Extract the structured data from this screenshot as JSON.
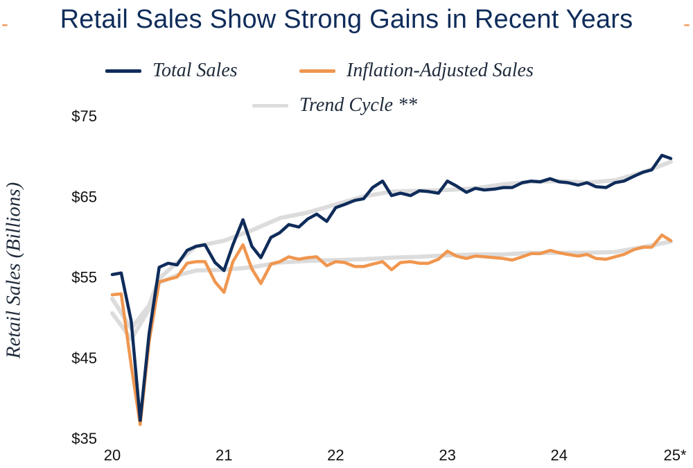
{
  "chart_data": {
    "type": "line",
    "title": "Retail Sales Show Strong Gains in Recent Years",
    "ylabel": "Retail Sales (Billions)",
    "xlabel": "",
    "ylim": [
      35,
      75
    ],
    "xlim": [
      2020,
      2025
    ],
    "y_ticks": [
      {
        "value": 75,
        "label": "$75"
      },
      {
        "value": 65,
        "label": "$65"
      },
      {
        "value": 55,
        "label": "$55"
      },
      {
        "value": 45,
        "label": "$45"
      },
      {
        "value": 35,
        "label": "$35"
      }
    ],
    "x_ticks": [
      {
        "value": 2020,
        "label": "20"
      },
      {
        "value": 2021,
        "label": "21"
      },
      {
        "value": 2022,
        "label": "22"
      },
      {
        "value": 2023,
        "label": "23"
      },
      {
        "value": 2024,
        "label": "24"
      },
      {
        "value": 2025,
        "label": "25*"
      }
    ],
    "grid": false,
    "legend_position": "top-center",
    "series": [
      {
        "name": "Trend Cycle **",
        "color": "#dcdcdc",
        "role": "trend",
        "values": [
          [
            2020.0,
            50.5
          ],
          [
            2020.17,
            47.3
          ],
          [
            2020.33,
            51.0
          ],
          [
            2020.42,
            54.3
          ],
          [
            2020.58,
            55.2
          ],
          [
            2020.75,
            55.8
          ],
          [
            2021.0,
            55.9
          ],
          [
            2021.25,
            56.2
          ],
          [
            2021.5,
            56.8
          ],
          [
            2021.75,
            57.0
          ],
          [
            2022.0,
            57.1
          ],
          [
            2022.25,
            57.2
          ],
          [
            2022.5,
            57.4
          ],
          [
            2022.75,
            57.5
          ],
          [
            2023.0,
            57.7
          ],
          [
            2023.25,
            57.8
          ],
          [
            2023.5,
            57.8
          ],
          [
            2023.75,
            58.0
          ],
          [
            2024.0,
            58.0
          ],
          [
            2024.25,
            58.0
          ],
          [
            2024.5,
            58.1
          ],
          [
            2024.75,
            58.7
          ],
          [
            2025.0,
            59.4
          ]
        ]
      },
      {
        "name": "Trend Cycle **",
        "color": "#dcdcdc",
        "role": "trend",
        "values": [
          [
            2020.0,
            52.3
          ],
          [
            2020.17,
            48.6
          ],
          [
            2020.33,
            51.5
          ],
          [
            2020.42,
            54.8
          ],
          [
            2020.58,
            56.8
          ],
          [
            2020.75,
            58.8
          ],
          [
            2021.0,
            59.5
          ],
          [
            2021.25,
            60.8
          ],
          [
            2021.5,
            62.3
          ],
          [
            2021.75,
            63.0
          ],
          [
            2022.0,
            64.0
          ],
          [
            2022.25,
            65.0
          ],
          [
            2022.5,
            65.6
          ],
          [
            2022.75,
            65.7
          ],
          [
            2023.0,
            65.8
          ],
          [
            2023.25,
            66.0
          ],
          [
            2023.5,
            66.5
          ],
          [
            2023.75,
            66.8
          ],
          [
            2024.0,
            66.9
          ],
          [
            2024.25,
            66.7
          ],
          [
            2024.5,
            67.0
          ],
          [
            2024.75,
            68.0
          ],
          [
            2025.0,
            69.3
          ]
        ]
      },
      {
        "name": "Inflation-Adjusted Sales",
        "color": "#f0964f",
        "values": [
          [
            2020.0,
            52.8
          ],
          [
            2020.08,
            52.9
          ],
          [
            2020.17,
            44.0
          ],
          [
            2020.25,
            36.7
          ],
          [
            2020.33,
            47.0
          ],
          [
            2020.42,
            54.4
          ],
          [
            2020.5,
            54.7
          ],
          [
            2020.58,
            55.0
          ],
          [
            2020.67,
            56.7
          ],
          [
            2020.75,
            56.9
          ],
          [
            2020.83,
            56.9
          ],
          [
            2020.92,
            54.4
          ],
          [
            2021.0,
            53.1
          ],
          [
            2021.08,
            56.9
          ],
          [
            2021.17,
            59.0
          ],
          [
            2021.25,
            56.0
          ],
          [
            2021.33,
            54.2
          ],
          [
            2021.42,
            56.6
          ],
          [
            2021.5,
            56.9
          ],
          [
            2021.58,
            57.5
          ],
          [
            2021.67,
            57.2
          ],
          [
            2021.75,
            57.4
          ],
          [
            2021.83,
            57.5
          ],
          [
            2021.92,
            56.4
          ],
          [
            2022.0,
            56.9
          ],
          [
            2022.08,
            56.8
          ],
          [
            2022.17,
            56.3
          ],
          [
            2022.25,
            56.3
          ],
          [
            2022.33,
            56.6
          ],
          [
            2022.42,
            56.9
          ],
          [
            2022.5,
            55.9
          ],
          [
            2022.58,
            56.8
          ],
          [
            2022.67,
            56.9
          ],
          [
            2022.75,
            56.7
          ],
          [
            2022.83,
            56.7
          ],
          [
            2022.92,
            57.2
          ],
          [
            2023.0,
            58.2
          ],
          [
            2023.08,
            57.6
          ],
          [
            2023.17,
            57.3
          ],
          [
            2023.25,
            57.6
          ],
          [
            2023.33,
            57.5
          ],
          [
            2023.42,
            57.4
          ],
          [
            2023.5,
            57.3
          ],
          [
            2023.58,
            57.1
          ],
          [
            2023.67,
            57.5
          ],
          [
            2023.75,
            57.9
          ],
          [
            2023.83,
            57.9
          ],
          [
            2023.92,
            58.3
          ],
          [
            2024.0,
            58.0
          ],
          [
            2024.08,
            57.8
          ],
          [
            2024.17,
            57.6
          ],
          [
            2024.25,
            57.8
          ],
          [
            2024.33,
            57.3
          ],
          [
            2024.42,
            57.2
          ],
          [
            2024.5,
            57.5
          ],
          [
            2024.58,
            57.8
          ],
          [
            2024.67,
            58.4
          ],
          [
            2024.75,
            58.7
          ],
          [
            2024.83,
            58.7
          ],
          [
            2024.92,
            60.2
          ],
          [
            2025.0,
            59.5
          ]
        ]
      },
      {
        "name": "Total Sales",
        "color": "#0f2c5a",
        "values": [
          [
            2020.0,
            55.3
          ],
          [
            2020.08,
            55.5
          ],
          [
            2020.17,
            49.5
          ],
          [
            2020.25,
            37.2
          ],
          [
            2020.33,
            48.0
          ],
          [
            2020.42,
            56.2
          ],
          [
            2020.5,
            56.7
          ],
          [
            2020.58,
            56.5
          ],
          [
            2020.67,
            58.3
          ],
          [
            2020.75,
            58.8
          ],
          [
            2020.83,
            59.0
          ],
          [
            2020.92,
            56.8
          ],
          [
            2021.0,
            55.8
          ],
          [
            2021.08,
            59.0
          ],
          [
            2021.17,
            62.1
          ],
          [
            2021.25,
            58.8
          ],
          [
            2021.33,
            57.4
          ],
          [
            2021.42,
            59.9
          ],
          [
            2021.5,
            60.5
          ],
          [
            2021.58,
            61.5
          ],
          [
            2021.67,
            61.2
          ],
          [
            2021.75,
            62.2
          ],
          [
            2021.83,
            62.8
          ],
          [
            2021.92,
            61.9
          ],
          [
            2022.0,
            63.6
          ],
          [
            2022.08,
            64.0
          ],
          [
            2022.17,
            64.5
          ],
          [
            2022.25,
            64.7
          ],
          [
            2022.33,
            66.1
          ],
          [
            2022.42,
            66.9
          ],
          [
            2022.5,
            65.1
          ],
          [
            2022.58,
            65.4
          ],
          [
            2022.67,
            65.1
          ],
          [
            2022.75,
            65.7
          ],
          [
            2022.83,
            65.6
          ],
          [
            2022.92,
            65.4
          ],
          [
            2023.0,
            66.9
          ],
          [
            2023.08,
            66.3
          ],
          [
            2023.17,
            65.5
          ],
          [
            2023.25,
            66.0
          ],
          [
            2023.33,
            65.8
          ],
          [
            2023.42,
            65.9
          ],
          [
            2023.5,
            66.1
          ],
          [
            2023.58,
            66.1
          ],
          [
            2023.67,
            66.7
          ],
          [
            2023.75,
            66.9
          ],
          [
            2023.83,
            66.8
          ],
          [
            2023.92,
            67.2
          ],
          [
            2024.0,
            66.8
          ],
          [
            2024.08,
            66.7
          ],
          [
            2024.17,
            66.4
          ],
          [
            2024.25,
            66.7
          ],
          [
            2024.33,
            66.2
          ],
          [
            2024.42,
            66.1
          ],
          [
            2024.5,
            66.7
          ],
          [
            2024.58,
            66.9
          ],
          [
            2024.67,
            67.5
          ],
          [
            2024.75,
            68.0
          ],
          [
            2024.83,
            68.3
          ],
          [
            2024.92,
            70.1
          ],
          [
            2025.0,
            69.7
          ]
        ]
      }
    ]
  },
  "legend": [
    {
      "label": "Total Sales",
      "color": "#0f2c5a"
    },
    {
      "label": "Inflation-Adjusted Sales",
      "color": "#f0964f"
    },
    {
      "label": "Trend Cycle **",
      "color": "#dcdcdc"
    }
  ],
  "decor": {
    "title_dash": "-",
    "dash_color": "#f0964f"
  }
}
